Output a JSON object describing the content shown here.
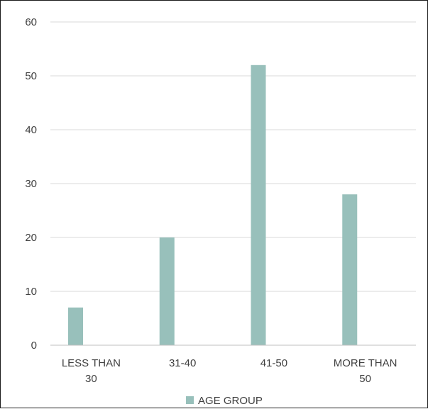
{
  "chart_data": {
    "type": "bar",
    "categories": [
      "LESS THAN 30",
      "31-40",
      "41-50",
      "MORE THAN 50"
    ],
    "category_label_lines": [
      [
        "LESS THAN",
        "30"
      ],
      [
        "31-40"
      ],
      [
        "41-50"
      ],
      [
        "MORE THAN",
        "50"
      ]
    ],
    "series": [
      {
        "name": "AGE GROUP",
        "values": [
          7,
          20,
          52,
          28
        ],
        "color": "#98c0bb"
      }
    ],
    "ylim": [
      0,
      60
    ],
    "yticks": [
      "0",
      "10",
      "20",
      "30",
      "40",
      "50",
      "60"
    ],
    "title": "",
    "xlabel": "",
    "ylabel": "",
    "grid": true,
    "legend_position": "bottom",
    "gridline_color": "#d9d9d9",
    "axis_color": "#bfbfbf"
  }
}
